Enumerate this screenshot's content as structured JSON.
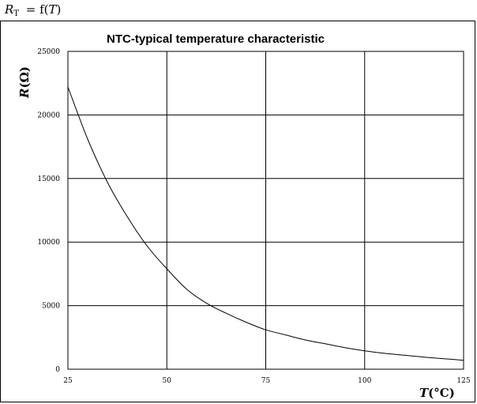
{
  "formula": {
    "symbol": "R",
    "subscript": "T",
    "rest": " = f(",
    "var": "T",
    "close": ")"
  },
  "chart_data": {
    "type": "line",
    "title": "NTC-typical temperature characteristic",
    "xlabel": {
      "var": "T",
      "unit": "(°C)"
    },
    "ylabel": {
      "var": "R",
      "unit": "(Ω)"
    },
    "xlim": [
      25,
      125
    ],
    "ylim": [
      0,
      25000
    ],
    "x_ticks": [
      25,
      50,
      75,
      100,
      125
    ],
    "y_ticks": [
      0,
      5000,
      10000,
      15000,
      20000,
      25000
    ],
    "grid": true,
    "series": [
      {
        "color": "#000000",
        "x": [
          25,
          30,
          35,
          40,
          45,
          50,
          55,
          60,
          65,
          70,
          75,
          80,
          85,
          90,
          95,
          100,
          105,
          110,
          115,
          120,
          125
        ],
        "y": [
          22200,
          18100,
          14700,
          12000,
          9700,
          7900,
          6300,
          5200,
          4400,
          3700,
          3100,
          2700,
          2300,
          2000,
          1700,
          1450,
          1250,
          1100,
          950,
          830,
          700
        ]
      }
    ]
  }
}
